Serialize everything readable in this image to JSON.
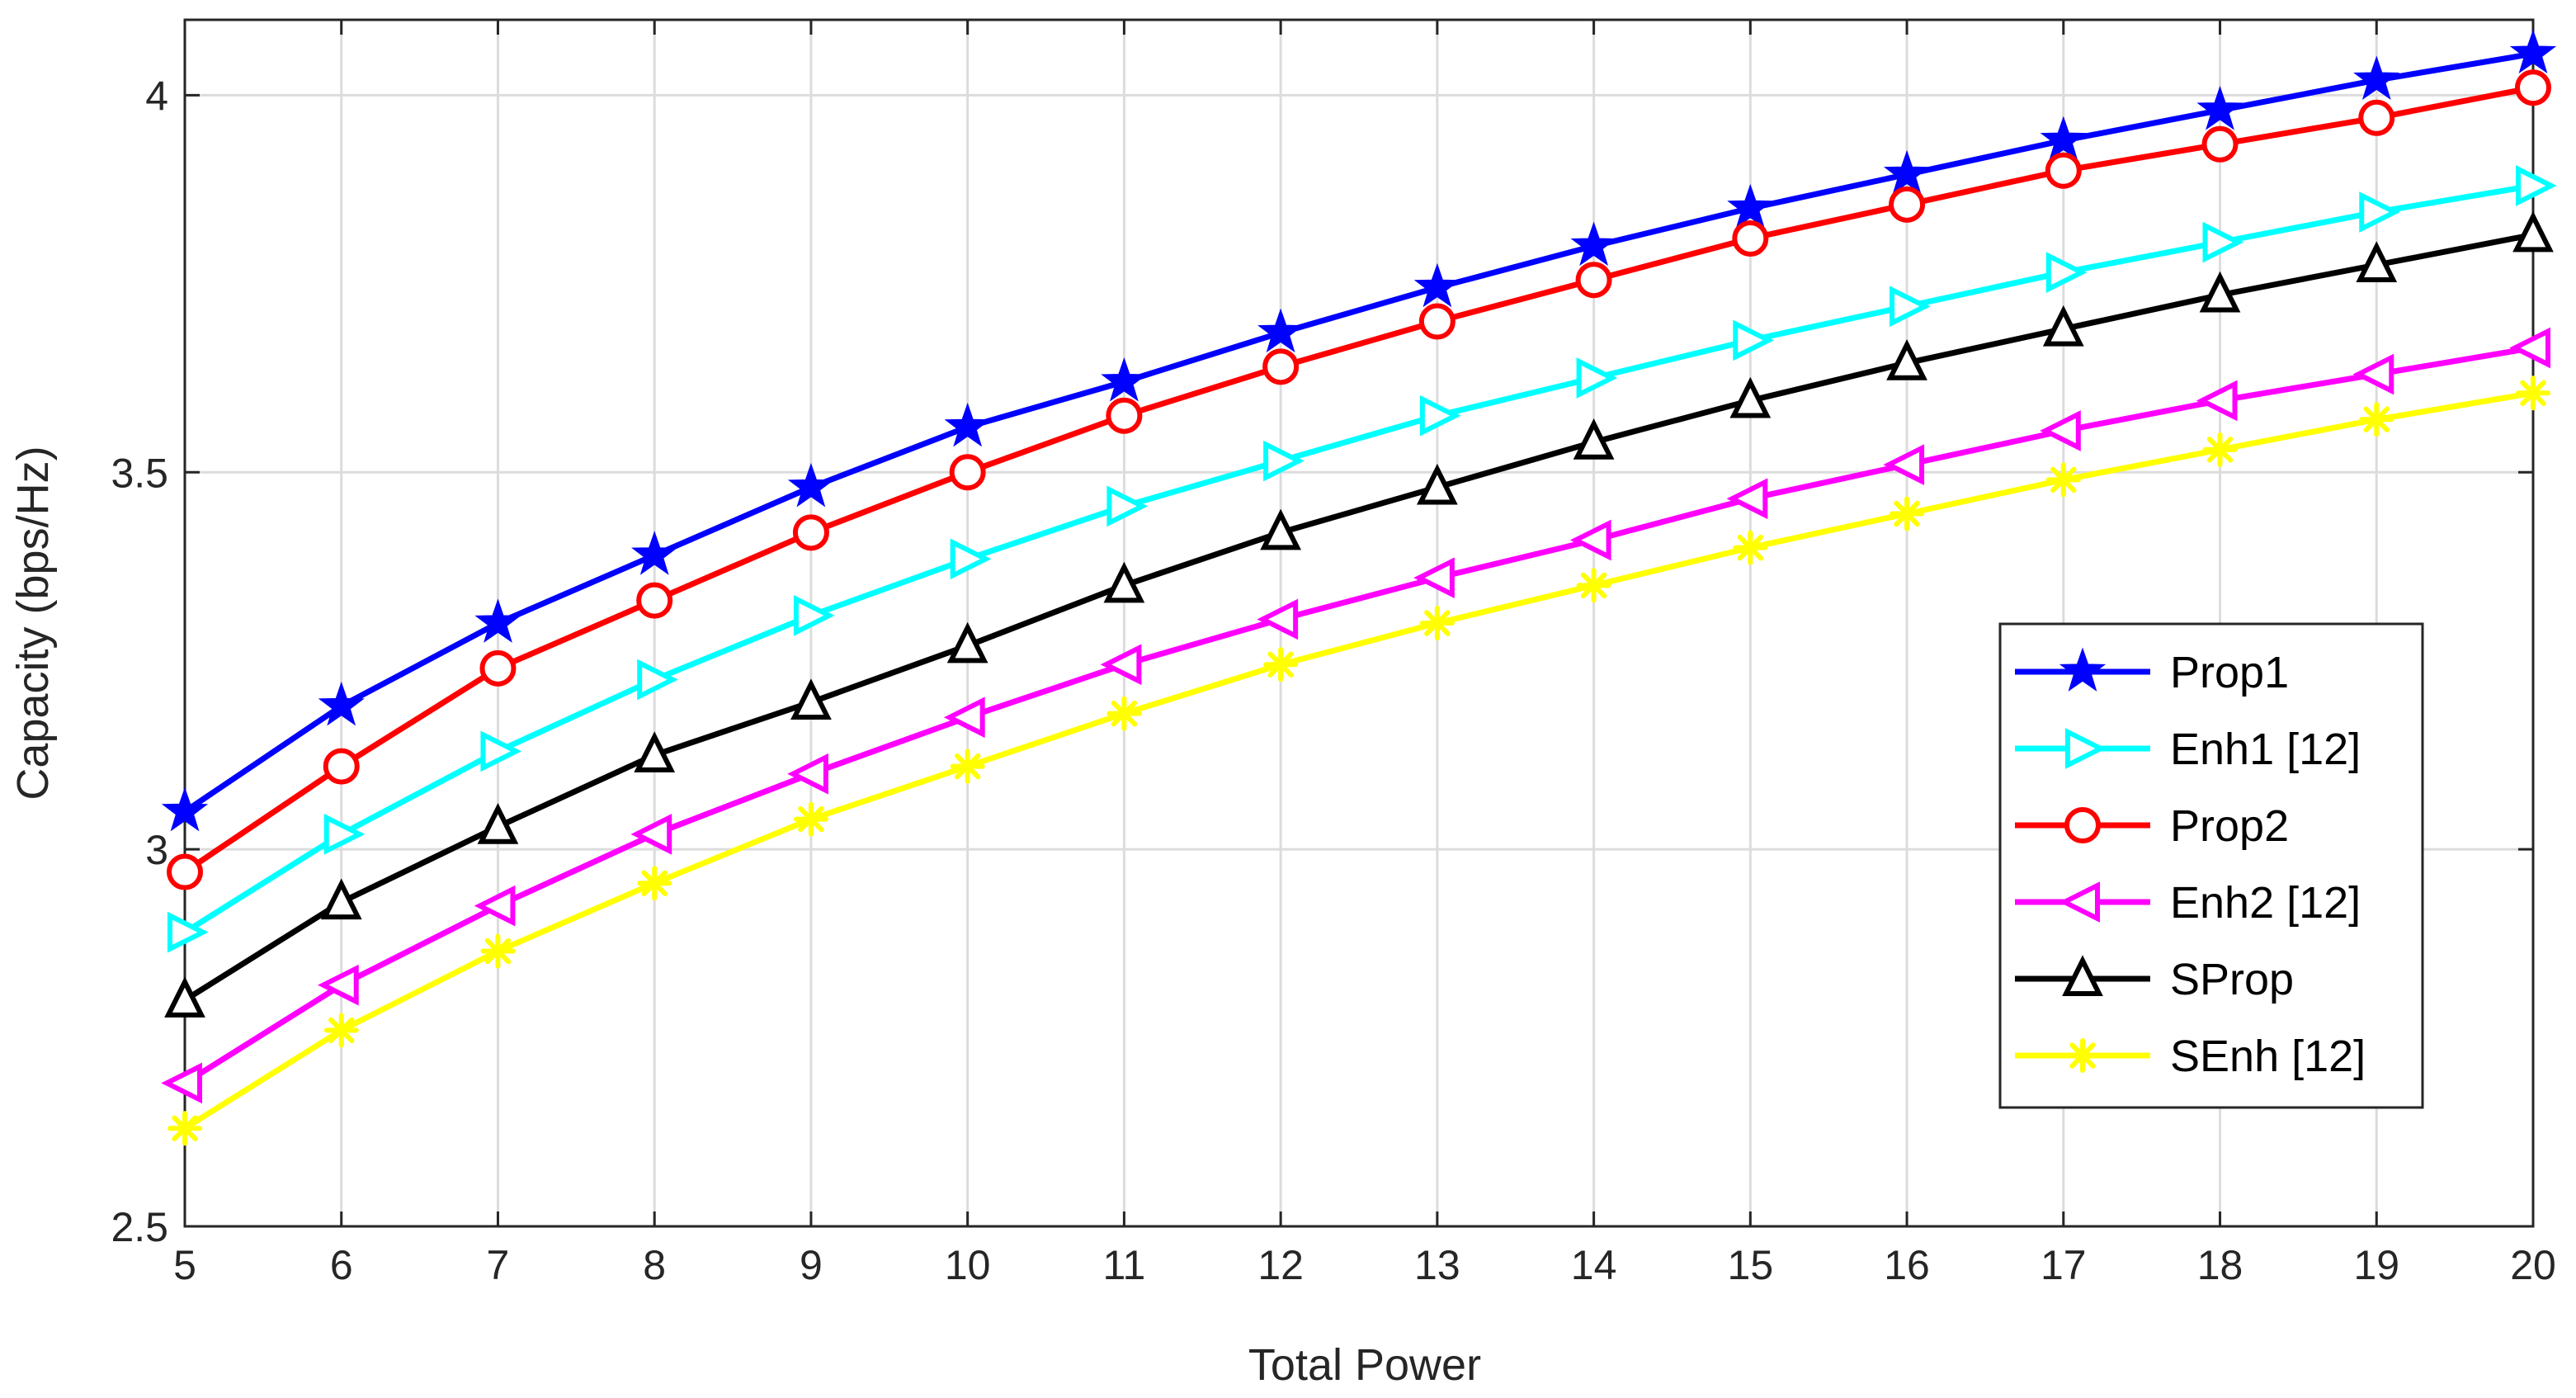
{
  "chart_data": {
    "type": "line",
    "title": "",
    "xlabel": "Total Power",
    "ylabel": "Capacity (bps/Hz)",
    "xlim": [
      5,
      20
    ],
    "ylim": [
      2.5,
      4.1
    ],
    "xticks": [
      5,
      6,
      7,
      8,
      9,
      10,
      11,
      12,
      13,
      14,
      15,
      16,
      17,
      18,
      19,
      20
    ],
    "yticks": [
      2.5,
      3,
      3.5,
      4
    ],
    "ytick_labels": [
      "2.5",
      "3",
      "3.5",
      "4"
    ],
    "grid": true,
    "legend_position": "right-center",
    "x": [
      5,
      6,
      7,
      8,
      9,
      10,
      11,
      12,
      13,
      14,
      15,
      16,
      17,
      18,
      19,
      20
    ],
    "series": [
      {
        "name": "Prop1",
        "color": "#0000ff",
        "marker": "star",
        "values": [
          3.05,
          3.19,
          3.3,
          3.39,
          3.48,
          3.56,
          3.62,
          3.685,
          3.745,
          3.8,
          3.85,
          3.895,
          3.94,
          3.98,
          4.02,
          4.055
        ]
      },
      {
        "name": "Enh1 [12]",
        "color": "#00ffff",
        "marker": "triangle-right",
        "values": [
          2.89,
          3.02,
          3.13,
          3.225,
          3.31,
          3.385,
          3.455,
          3.515,
          3.575,
          3.625,
          3.675,
          3.72,
          3.765,
          3.805,
          3.845,
          3.88
        ]
      },
      {
        "name": "Prop2",
        "color": "#ff0000",
        "marker": "circle",
        "values": [
          2.97,
          3.11,
          3.24,
          3.33,
          3.42,
          3.5,
          3.575,
          3.64,
          3.7,
          3.755,
          3.81,
          3.855,
          3.9,
          3.935,
          3.97,
          4.01
        ]
      },
      {
        "name": "Enh2 [12]",
        "color": "#ff00ff",
        "marker": "triangle-left",
        "values": [
          2.69,
          2.82,
          2.925,
          3.02,
          3.1,
          3.175,
          3.245,
          3.305,
          3.36,
          3.41,
          3.465,
          3.51,
          3.555,
          3.595,
          3.63,
          3.665
        ]
      },
      {
        "name": "SProp",
        "color": "#000000",
        "marker": "triangle-up",
        "values": [
          2.8,
          2.93,
          3.03,
          3.125,
          3.195,
          3.27,
          3.35,
          3.42,
          3.48,
          3.54,
          3.595,
          3.645,
          3.69,
          3.735,
          3.775,
          3.815
        ]
      },
      {
        "name": "SEnh [12]",
        "color": "#ffff00",
        "marker": "asterisk",
        "values": [
          2.63,
          2.76,
          2.865,
          2.955,
          3.04,
          3.11,
          3.18,
          3.245,
          3.3,
          3.35,
          3.4,
          3.445,
          3.49,
          3.53,
          3.57,
          3.605
        ]
      }
    ]
  }
}
